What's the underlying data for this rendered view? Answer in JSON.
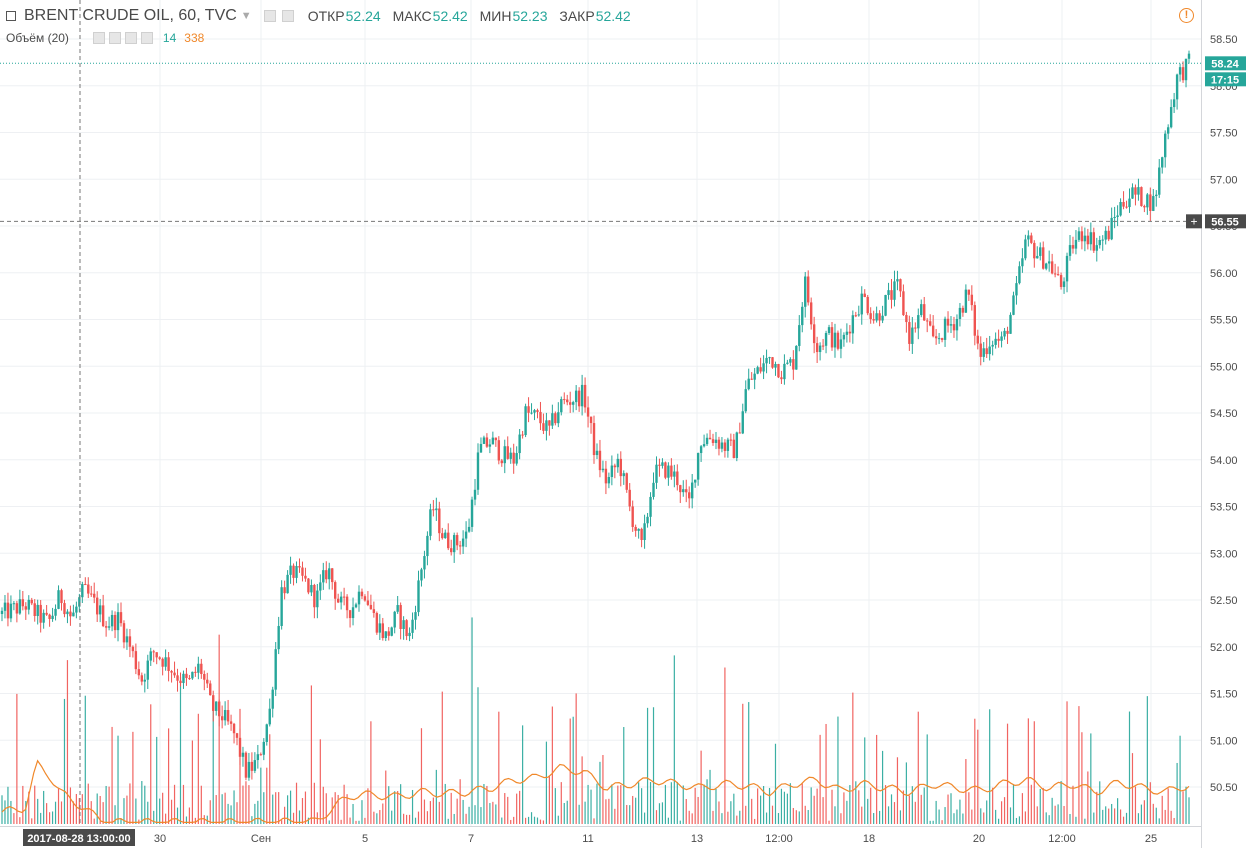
{
  "header": {
    "symbol": "BRENT CRUDE OIL, 60, TVC",
    "open_label": "ОТКР",
    "open": "52.24",
    "high_label": "МАКС",
    "high": "52.42",
    "low_label": "МИН",
    "low": "52.23",
    "close_label": "ЗАКР",
    "close": "52.42"
  },
  "volume_indicator": {
    "label": "Объём (20)",
    "volume": "14",
    "ma": "338"
  },
  "crosshair": {
    "time_label": "2017-08-28 13:00:00",
    "price": "56.55"
  },
  "last_price": {
    "value": "58.24",
    "countdown": "17:15"
  },
  "colors": {
    "up": "#26a69a",
    "down": "#ef5350",
    "ma": "#f0882a",
    "grid": "#eef0f3"
  },
  "chart_data": {
    "type": "candlestick",
    "title": "BRENT CRUDE OIL, 60, TVC",
    "interval": "60",
    "y_ticks": [
      "58.50",
      "58.00",
      "57.50",
      "57.00",
      "56.50",
      "56.00",
      "55.50",
      "55.00",
      "54.50",
      "54.00",
      "53.50",
      "53.00",
      "52.50",
      "52.00",
      "51.50",
      "51.00",
      "50.50"
    ],
    "x_ticks": [
      "30",
      "Сен",
      "5",
      "7",
      "11",
      "13",
      "12:00",
      "18",
      "20",
      "12:00",
      "25"
    ],
    "ylim": [
      50.05,
      58.65
    ],
    "grid": true,
    "price_path": [
      [
        0,
        52.35
      ],
      [
        2,
        52.45
      ],
      [
        4,
        52.25
      ],
      [
        5,
        52.55
      ],
      [
        6,
        52.3
      ],
      [
        7,
        52.6
      ],
      [
        8,
        52.45
      ],
      [
        9,
        52.25
      ],
      [
        10,
        52.3
      ],
      [
        11,
        52.0
      ],
      [
        12,
        51.65
      ],
      [
        13,
        51.95
      ],
      [
        14,
        51.85
      ],
      [
        15,
        51.7
      ],
      [
        16,
        51.6
      ],
      [
        17,
        51.8
      ],
      [
        18,
        51.35
      ],
      [
        19,
        51.25
      ],
      [
        20,
        51.05
      ],
      [
        21,
        50.65
      ],
      [
        22,
        50.78
      ],
      [
        23,
        51.3
      ],
      [
        24,
        52.6
      ],
      [
        25,
        52.8
      ],
      [
        26,
        52.7
      ],
      [
        27,
        52.5
      ],
      [
        28,
        52.85
      ],
      [
        29,
        52.45
      ],
      [
        30,
        52.4
      ],
      [
        31,
        52.65
      ],
      [
        32,
        52.3
      ],
      [
        33,
        52.1
      ],
      [
        34,
        52.35
      ],
      [
        35,
        52.1
      ],
      [
        36,
        52.8
      ],
      [
        37,
        53.5
      ],
      [
        38,
        53.15
      ],
      [
        39,
        53.1
      ],
      [
        40,
        53.2
      ],
      [
        41,
        54.1
      ],
      [
        42,
        54.2
      ],
      [
        43,
        54.05
      ],
      [
        44,
        54.0
      ],
      [
        45,
        54.5
      ],
      [
        46,
        54.45
      ],
      [
        47,
        54.3
      ],
      [
        48,
        54.6
      ],
      [
        49,
        54.65
      ],
      [
        50,
        54.7
      ],
      [
        51,
        54.05
      ],
      [
        52,
        53.75
      ],
      [
        53,
        54.0
      ],
      [
        54,
        53.45
      ],
      [
        55,
        53.05
      ],
      [
        56,
        53.85
      ],
      [
        57,
        53.9
      ],
      [
        58,
        53.8
      ],
      [
        59,
        53.5
      ],
      [
        60,
        54.2
      ],
      [
        61,
        54.25
      ],
      [
        62,
        54.15
      ],
      [
        63,
        54.1
      ],
      [
        64,
        54.8
      ],
      [
        65,
        54.95
      ],
      [
        66,
        55.1
      ],
      [
        67,
        54.95
      ],
      [
        68,
        55.05
      ],
      [
        69,
        55.9
      ],
      [
        70,
        55.2
      ],
      [
        71,
        55.35
      ],
      [
        72,
        55.2
      ],
      [
        73,
        55.5
      ],
      [
        74,
        55.75
      ],
      [
        75,
        55.5
      ],
      [
        76,
        55.7
      ],
      [
        77,
        55.85
      ],
      [
        78,
        55.3
      ],
      [
        79,
        55.6
      ],
      [
        80,
        55.25
      ],
      [
        81,
        55.4
      ],
      [
        82,
        55.5
      ],
      [
        83,
        55.8
      ],
      [
        84,
        55.1
      ],
      [
        85,
        55.3
      ],
      [
        86,
        55.25
      ],
      [
        87,
        55.7
      ],
      [
        88,
        56.35
      ],
      [
        89,
        56.2
      ],
      [
        90,
        56.1
      ],
      [
        91,
        55.85
      ],
      [
        92,
        56.3
      ],
      [
        93,
        56.45
      ],
      [
        94,
        56.3
      ],
      [
        95,
        56.4
      ],
      [
        96,
        56.7
      ],
      [
        97,
        56.85
      ],
      [
        98,
        56.8
      ],
      [
        99,
        56.75
      ],
      [
        100,
        57.5
      ],
      [
        101,
        58.1
      ],
      [
        102,
        58.24
      ]
    ],
    "volume_path": [
      [
        0,
        0.15
      ],
      [
        2,
        0.2
      ],
      [
        3,
        0.75
      ],
      [
        4,
        0.62
      ],
      [
        5,
        0.4
      ],
      [
        7,
        0.2
      ],
      [
        8,
        0.1
      ],
      [
        9,
        0.02
      ],
      [
        20,
        0.02
      ],
      [
        27,
        0.03
      ],
      [
        28,
        0.15
      ],
      [
        29,
        0.27
      ],
      [
        30,
        0.35
      ],
      [
        31,
        0.37
      ],
      [
        34,
        0.34
      ],
      [
        36,
        0.4
      ],
      [
        38,
        0.38
      ],
      [
        40,
        0.4
      ],
      [
        42,
        0.45
      ],
      [
        44,
        0.55
      ],
      [
        46,
        0.58
      ],
      [
        48,
        0.7
      ],
      [
        50,
        0.65
      ],
      [
        52,
        0.45
      ],
      [
        54,
        0.5
      ],
      [
        56,
        0.55
      ],
      [
        58,
        0.5
      ],
      [
        60,
        0.45
      ],
      [
        62,
        0.5
      ],
      [
        64,
        0.48
      ],
      [
        66,
        0.4
      ],
      [
        68,
        0.5
      ],
      [
        70,
        0.55
      ],
      [
        72,
        0.42
      ],
      [
        74,
        0.5
      ],
      [
        76,
        0.45
      ],
      [
        78,
        0.4
      ],
      [
        80,
        0.5
      ],
      [
        82,
        0.45
      ],
      [
        84,
        0.42
      ],
      [
        86,
        0.5
      ],
      [
        88,
        0.55
      ],
      [
        90,
        0.45
      ],
      [
        92,
        0.5
      ],
      [
        94,
        0.4
      ],
      [
        96,
        0.52
      ],
      [
        98,
        0.45
      ],
      [
        100,
        0.4
      ],
      [
        101,
        0.45
      ],
      [
        102,
        0.48
      ]
    ]
  }
}
